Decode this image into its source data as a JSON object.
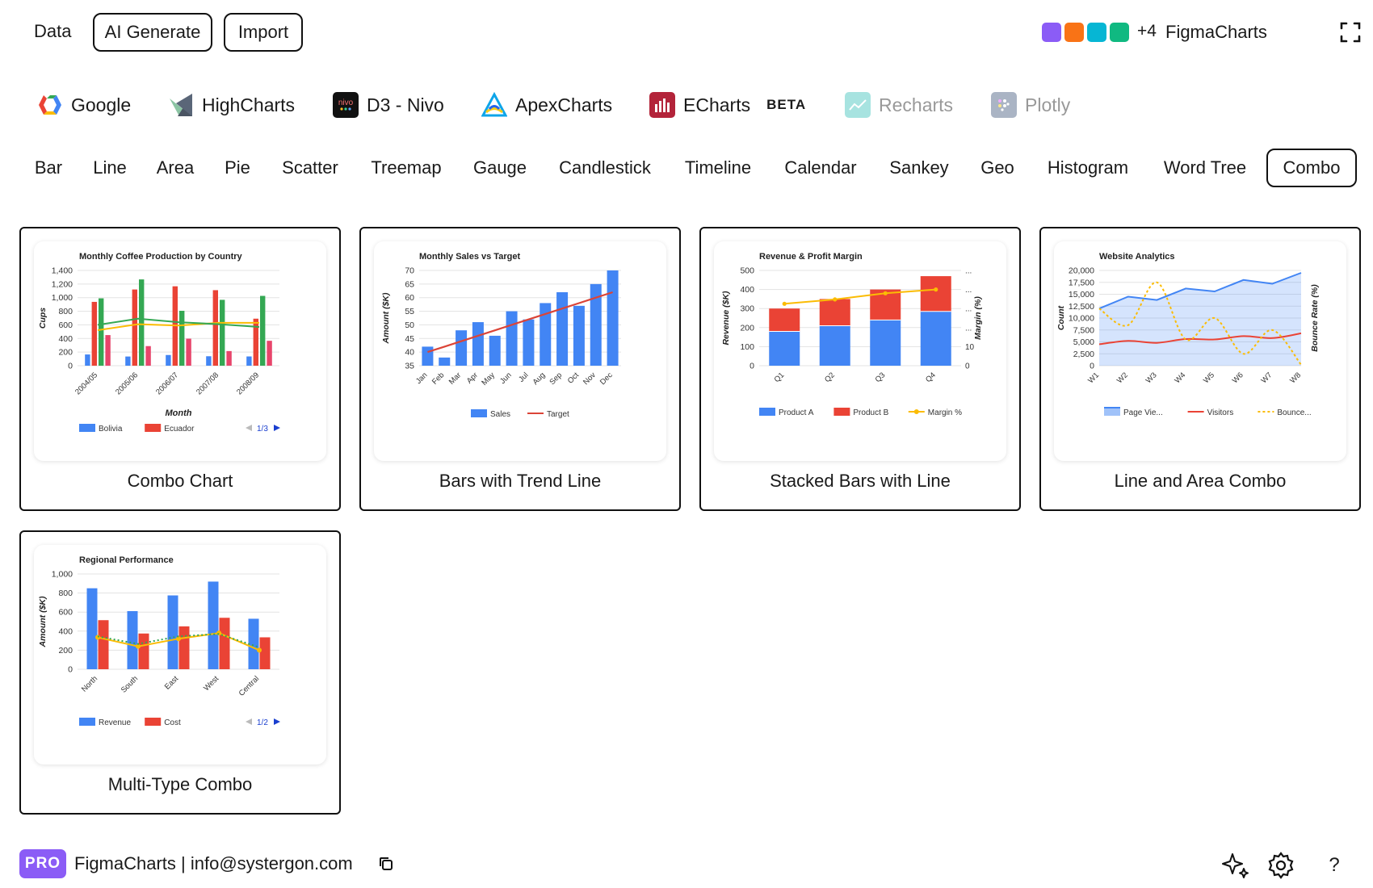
{
  "topbar": {
    "data_label": "Data",
    "ai_generate_label": "AI Generate",
    "import_label": "Import",
    "swatch_colors": [
      "#8b5cf6",
      "#f97316",
      "#06b6d4",
      "#10b981"
    ],
    "more_count": "+4",
    "brand": "FigmaCharts",
    "expand_icon": "expand-icon"
  },
  "libraries": [
    {
      "label": "Google",
      "icon": "google-icon"
    },
    {
      "label": "HighCharts",
      "icon": "highcharts-icon"
    },
    {
      "label": "D3 - Nivo",
      "icon": "nivo-icon",
      "icon_text": "nivo"
    },
    {
      "label": "ApexCharts",
      "icon": "apexcharts-icon"
    },
    {
      "label": "ECharts",
      "icon": "echarts-icon",
      "badge": "BETA"
    },
    {
      "label": "Recharts",
      "icon": "recharts-icon"
    },
    {
      "label": "Plotly",
      "icon": "plotly-icon"
    }
  ],
  "chart_types": [
    "Bar",
    "Line",
    "Area",
    "Pie",
    "Scatter",
    "Treemap",
    "Gauge",
    "Candlestick",
    "Timeline",
    "Calendar",
    "Sankey",
    "Geo",
    "Histogram",
    "Word Tree",
    "Combo"
  ],
  "active_type": "Combo",
  "cards": [
    {
      "caption": "Combo Chart"
    },
    {
      "caption": "Bars with Trend Line"
    },
    {
      "caption": "Stacked Bars with Line"
    },
    {
      "caption": "Line and Area Combo"
    },
    {
      "caption": "Multi-Type Combo"
    }
  ],
  "footer": {
    "badge": "PRO",
    "text": "FigmaCharts | info@systergon.com",
    "copy_icon": "copy-icon",
    "sparkle_icon": "sparkle-icon",
    "settings_icon": "gear-icon",
    "help_label": "?"
  },
  "colors": {
    "blue": "#4285f4",
    "red": "#ea4335",
    "yellow": "#fbbc04",
    "green": "#34a853",
    "teal": "#0f9d58",
    "pink": "#e8456b"
  },
  "chart_data": [
    {
      "type": "bar",
      "title": "Monthly Coffee Production by Country",
      "xlabel": "Month",
      "ylabel": "Cups",
      "categories": [
        "2004/05",
        "2005/06",
        "2006/07",
        "2007/08",
        "2008/09"
      ],
      "ylim": [
        0,
        1400
      ],
      "yticks": [
        "0",
        "200",
        "400",
        "600",
        "800",
        "1,000",
        "1,200",
        "1,400"
      ],
      "series": [
        {
          "name": "Bolivia",
          "kind": "bar",
          "color": "#4285f4",
          "values": [
            165,
            135,
            157,
            139,
            136
          ]
        },
        {
          "name": "Ecuador",
          "kind": "bar",
          "color": "#ea4335",
          "values": [
            938,
            1120,
            1167,
            1110,
            691
          ]
        },
        {
          "kind": "bar",
          "color": "#34a853",
          "values": [
            990,
            1268,
            807,
            968,
            1026
          ]
        },
        {
          "kind": "bar",
          "color": "#e8456b",
          "values": [
            450,
            288,
            397,
            215,
            366
          ]
        },
        {
          "kind": "line",
          "color": "#fbbc04",
          "values": [
            522,
            610,
            590,
            630,
            630
          ]
        },
        {
          "kind": "line",
          "color": "#34a853",
          "values": [
            600,
            690,
            640,
            610,
            570
          ]
        }
      ],
      "legend": [
        "Bolivia",
        "Ecuador"
      ],
      "pager": "1/3"
    },
    {
      "type": "bar",
      "title": "Monthly Sales vs Target",
      "ylabel": "Amount ($K)",
      "categories": [
        "Jan",
        "Feb",
        "Mar",
        "Apr",
        "May",
        "Jun",
        "Jul",
        "Aug",
        "Sep",
        "Oct",
        "Nov",
        "Dec"
      ],
      "ylim": [
        35,
        70
      ],
      "yticks": [
        "35",
        "40",
        "45",
        "50",
        "55",
        "60",
        "65",
        "70"
      ],
      "series": [
        {
          "name": "Sales",
          "kind": "bar",
          "color": "#4285f4",
          "values": [
            42,
            38,
            48,
            51,
            46,
            55,
            52,
            58,
            62,
            57,
            65,
            70
          ]
        },
        {
          "name": "Target",
          "kind": "line",
          "color": "#db4437",
          "values": [
            40,
            42,
            44,
            46,
            48,
            50,
            52,
            54,
            56,
            58,
            60,
            62
          ]
        }
      ],
      "legend": [
        "Sales",
        "Target"
      ]
    },
    {
      "type": "bar",
      "title": "Revenue & Profit Margin",
      "ylabel": "Revenue ($K)",
      "y2label": "Margin (%)",
      "categories": [
        "Q1",
        "Q2",
        "Q3",
        "Q4"
      ],
      "ylim": [
        0,
        500
      ],
      "yticks": [
        "0",
        "100",
        "200",
        "300",
        "400",
        "500"
      ],
      "y2ticks": [
        "0",
        "10",
        "...",
        "...",
        "...",
        "..."
      ],
      "series": [
        {
          "name": "Product A",
          "kind": "bar",
          "stack": true,
          "color": "#4285f4",
          "values": [
            180,
            210,
            240,
            285
          ]
        },
        {
          "name": "Product B",
          "kind": "bar",
          "stack": true,
          "color": "#ea4335",
          "values": [
            120,
            140,
            160,
            185
          ]
        },
        {
          "name": "Margin %",
          "kind": "line",
          "color": "#fbbc04",
          "values": [
            325,
            348,
            380,
            400
          ]
        }
      ],
      "legend": [
        "Product A",
        "Product B",
        "Margin %"
      ]
    },
    {
      "type": "area",
      "title": "Website Analytics",
      "ylabel": "Count",
      "y2label": "Bounce Rate (%)",
      "categories": [
        "W1",
        "W2",
        "W3",
        "W4",
        "W5",
        "W6",
        "W7",
        "W8"
      ],
      "ylim": [
        0,
        20000
      ],
      "yticks": [
        "0",
        "2,500",
        "5,000",
        "7,500",
        "10,000",
        "12,500",
        "15,000",
        "17,500",
        "20,000"
      ],
      "series": [
        {
          "name": "Page Vie...",
          "kind": "area",
          "color": "#4285f4",
          "values": [
            12000,
            14500,
            13800,
            16200,
            15600,
            18000,
            17200,
            19500
          ]
        },
        {
          "name": "Visitors",
          "kind": "line",
          "color": "#ea4335",
          "values": [
            4500,
            5200,
            4800,
            5600,
            5500,
            6200,
            5800,
            6800
          ]
        },
        {
          "name": "Bounce...",
          "kind": "line",
          "dashed": true,
          "color": "#fbbc04",
          "values": [
            12000,
            8500,
            17500,
            5500,
            10000,
            2500,
            7500,
            200
          ]
        }
      ],
      "legend": [
        "Page Vie...",
        "Visitors",
        "Bounce..."
      ]
    },
    {
      "type": "bar",
      "title": "Regional Performance",
      "ylabel": "Amount ($K)",
      "categories": [
        "North",
        "South",
        "East",
        "West",
        "Central"
      ],
      "ylim": [
        0,
        1000
      ],
      "yticks": [
        "0",
        "200",
        "400",
        "600",
        "800",
        "1,000"
      ],
      "series": [
        {
          "name": "Revenue",
          "kind": "bar",
          "color": "#4285f4",
          "values": [
            850,
            610,
            775,
            920,
            530
          ]
        },
        {
          "name": "Cost",
          "kind": "bar",
          "color": "#ea4335",
          "values": [
            515,
            375,
            450,
            540,
            335
          ]
        },
        {
          "kind": "line",
          "color": "#fbbc04",
          "values": [
            335,
            240,
            320,
            380,
            200
          ]
        },
        {
          "kind": "line",
          "dashed": true,
          "color": "#34a853",
          "values": [
            345,
            265,
            345,
            370,
            230
          ]
        }
      ],
      "legend": [
        "Revenue",
        "Cost"
      ],
      "pager": "1/2"
    }
  ]
}
